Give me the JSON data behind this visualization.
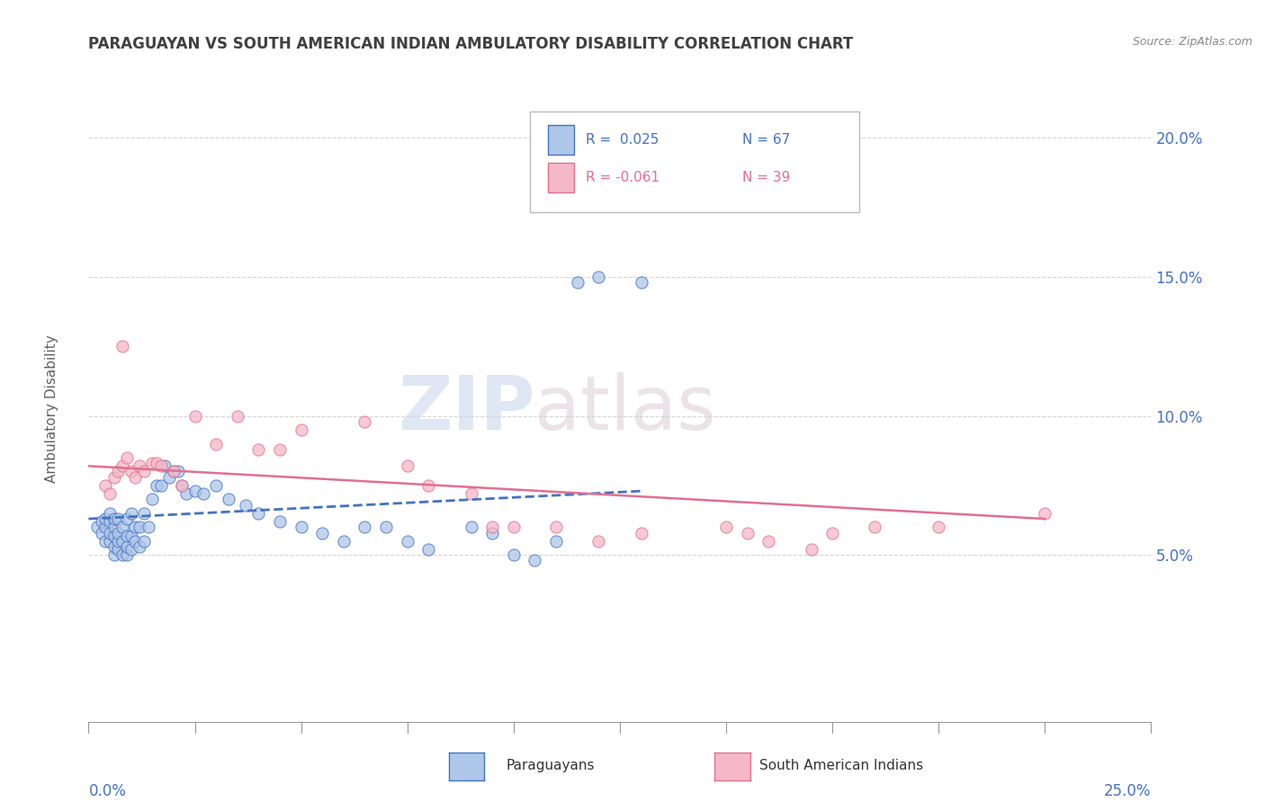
{
  "title": "PARAGUAYAN VS SOUTH AMERICAN INDIAN AMBULATORY DISABILITY CORRELATION CHART",
  "source": "Source: ZipAtlas.com",
  "ylabel": "Ambulatory Disability",
  "yticks": [
    0.0,
    0.05,
    0.1,
    0.15,
    0.2
  ],
  "ytick_labels": [
    "",
    "5.0%",
    "10.0%",
    "15.0%",
    "20.0%"
  ],
  "xlim": [
    0.0,
    0.25
  ],
  "ylim": [
    -0.01,
    0.215
  ],
  "watermark_zip": "ZIP",
  "watermark_atlas": "atlas",
  "legend_r1": "R =  0.025",
  "legend_n1": "N = 67",
  "legend_r2": "R = -0.061",
  "legend_n2": "N = 39",
  "paraguayan_color": "#aec6e8",
  "south_american_color": "#f5b8c8",
  "trend_paraguayan_color": "#4472c4",
  "trend_south_american_color": "#e07090",
  "background_color": "#ffffff",
  "grid_color": "#cccccc",
  "title_color": "#404040",
  "axis_label_color": "#4472c4",
  "paraguayan_scatter_x": [
    0.002,
    0.003,
    0.003,
    0.004,
    0.004,
    0.004,
    0.005,
    0.005,
    0.005,
    0.005,
    0.006,
    0.006,
    0.006,
    0.006,
    0.006,
    0.007,
    0.007,
    0.007,
    0.007,
    0.008,
    0.008,
    0.008,
    0.009,
    0.009,
    0.009,
    0.009,
    0.01,
    0.01,
    0.01,
    0.011,
    0.011,
    0.012,
    0.012,
    0.013,
    0.013,
    0.014,
    0.015,
    0.016,
    0.017,
    0.018,
    0.019,
    0.02,
    0.021,
    0.022,
    0.023,
    0.025,
    0.027,
    0.03,
    0.033,
    0.037,
    0.04,
    0.045,
    0.05,
    0.055,
    0.06,
    0.065,
    0.07,
    0.075,
    0.08,
    0.09,
    0.095,
    0.1,
    0.105,
    0.11,
    0.115,
    0.12,
    0.13
  ],
  "paraguayan_scatter_y": [
    0.06,
    0.058,
    0.062,
    0.055,
    0.06,
    0.063,
    0.055,
    0.058,
    0.062,
    0.065,
    0.05,
    0.053,
    0.057,
    0.06,
    0.063,
    0.052,
    0.055,
    0.058,
    0.063,
    0.05,
    0.055,
    0.06,
    0.05,
    0.053,
    0.057,
    0.063,
    0.052,
    0.057,
    0.065,
    0.055,
    0.06,
    0.053,
    0.06,
    0.055,
    0.065,
    0.06,
    0.07,
    0.075,
    0.075,
    0.082,
    0.078,
    0.08,
    0.08,
    0.075,
    0.072,
    0.073,
    0.072,
    0.075,
    0.07,
    0.068,
    0.065,
    0.062,
    0.06,
    0.058,
    0.055,
    0.06,
    0.06,
    0.055,
    0.052,
    0.06,
    0.058,
    0.05,
    0.048,
    0.055,
    0.148,
    0.15,
    0.148
  ],
  "south_american_scatter_x": [
    0.004,
    0.005,
    0.006,
    0.007,
    0.008,
    0.008,
    0.009,
    0.01,
    0.011,
    0.012,
    0.013,
    0.015,
    0.016,
    0.017,
    0.02,
    0.022,
    0.025,
    0.03,
    0.035,
    0.04,
    0.045,
    0.05,
    0.065,
    0.075,
    0.08,
    0.09,
    0.095,
    0.1,
    0.11,
    0.12,
    0.13,
    0.15,
    0.155,
    0.16,
    0.17,
    0.175,
    0.185,
    0.2,
    0.225
  ],
  "south_american_scatter_y": [
    0.075,
    0.072,
    0.078,
    0.08,
    0.082,
    0.125,
    0.085,
    0.08,
    0.078,
    0.082,
    0.08,
    0.083,
    0.083,
    0.082,
    0.08,
    0.075,
    0.1,
    0.09,
    0.1,
    0.088,
    0.088,
    0.095,
    0.098,
    0.082,
    0.075,
    0.072,
    0.06,
    0.06,
    0.06,
    0.055,
    0.058,
    0.06,
    0.058,
    0.055,
    0.052,
    0.058,
    0.06,
    0.06,
    0.065
  ],
  "trend_p_x0": 0.0,
  "trend_p_x1": 0.13,
  "trend_p_y0": 0.063,
  "trend_p_y1": 0.073,
  "trend_sa_x0": 0.0,
  "trend_sa_x1": 0.225,
  "trend_sa_y0": 0.082,
  "trend_sa_y1": 0.063
}
